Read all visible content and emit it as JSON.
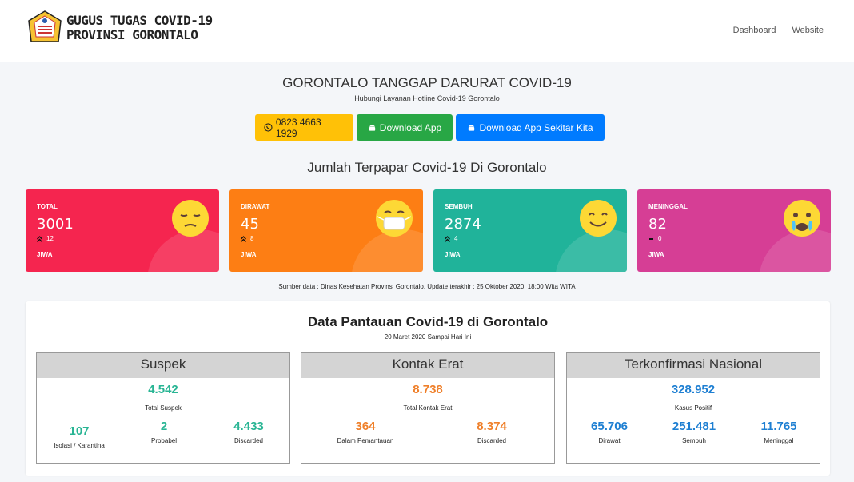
{
  "header": {
    "logo_line1": "GUGUS TUGAS COVID-19",
    "logo_line2": "PROVINSI GORONTALO",
    "nav": [
      "Dashboard",
      "Website"
    ]
  },
  "hero": {
    "title": "GORONTALO TANGGAP DARURAT COVID-19",
    "subtitle": "Hubungi Layanan Hotline Covid-19 Gorontalo",
    "buttons": [
      {
        "label": "0823 4663 1929",
        "icon": "whatsapp-icon",
        "color": "#ffc107"
      },
      {
        "label": "Download App",
        "icon": "android-icon",
        "color": "#28a745"
      },
      {
        "label": "Download App Sekitar Kita",
        "icon": "android-icon",
        "color": "#007bff"
      }
    ]
  },
  "exposed": {
    "title": "Jumlah Terpapar Covid-19 Di Gorontalo",
    "cards": [
      {
        "label": "TOTAL",
        "value": "3001",
        "delta": "12",
        "trend": "up",
        "unit": "JIWA",
        "color": "#f5254f",
        "icon": "sad-face-icon"
      },
      {
        "label": "DIRAWAT",
        "value": "45",
        "delta": "8",
        "trend": "up",
        "unit": "JIWA",
        "color": "#fd7e14",
        "icon": "mask-face-icon"
      },
      {
        "label": "SEMBUH",
        "value": "2874",
        "delta": "4",
        "trend": "up",
        "unit": "JIWA",
        "color": "#20b39a",
        "icon": "smile-face-icon"
      },
      {
        "label": "MENINGGAL",
        "value": "82",
        "delta": "0",
        "trend": "flat",
        "unit": "JIWA",
        "color": "#d63e95",
        "icon": "crying-face-icon"
      }
    ],
    "source": "Sumber data : Dinas Kesehatan Provinsi Gorontalo. Update terakhir : 25 Oktober 2020, 18:00 Wita WITA"
  },
  "monitoring": {
    "title": "Data Pantauan Covid-19 di Gorontalo",
    "subtitle": "20 Maret 2020 Sampai Hari Ini",
    "boxes": [
      {
        "title": "Suspek",
        "total": "4.542",
        "total_label": "Total Suspek",
        "accent": "#29b594",
        "items": [
          {
            "value": "107",
            "label": "Isolasi / Karantina"
          },
          {
            "value": "2",
            "label": "Probabel"
          },
          {
            "value": "4.433",
            "label": "Discarded"
          }
        ]
      },
      {
        "title": "Kontak Erat",
        "total": "8.738",
        "total_label": "Total Kontak Erat",
        "accent": "#ef7f29",
        "items": [
          {
            "value": "364",
            "label": "Dalam Pemantauan"
          },
          {
            "value": "8.374",
            "label": "Discarded"
          }
        ]
      },
      {
        "title": "Terkonfirmasi Nasional",
        "total": "328.952",
        "total_label": "Kasus Positif",
        "accent": "#1e7fd2",
        "items": [
          {
            "value": "65.706",
            "label": "Dirawat"
          },
          {
            "value": "251.481",
            "label": "Sembuh"
          },
          {
            "value": "11.765",
            "label": "Meninggal"
          }
        ]
      }
    ]
  }
}
